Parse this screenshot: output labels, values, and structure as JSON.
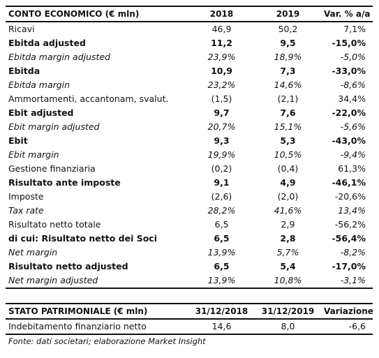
{
  "income": {
    "header": [
      "CONTO ECONOMICO (€ mln)",
      "2018",
      "2019",
      "Var. % a/a"
    ],
    "rows": [
      {
        "label": "Ricavi",
        "v2018": "46,9",
        "v2019": "50,2",
        "var": "7,1%",
        "style": "normal"
      },
      {
        "label": "Ebitda adjusted",
        "v2018": "11,2",
        "v2019": "9,5",
        "var": "-15,0%",
        "style": "bold"
      },
      {
        "label": "Ebitda margin adjusted",
        "v2018": "23,9%",
        "v2019": "18,9%",
        "var": "-5,0%",
        "style": "italic"
      },
      {
        "label": "Ebitda",
        "v2018": "10,9",
        "v2019": "7,3",
        "var": "-33,0%",
        "style": "bold"
      },
      {
        "label": "Ebitda margin",
        "v2018": "23,2%",
        "v2019": "14,6%",
        "var": "-8,6%",
        "style": "italic"
      },
      {
        "label": "Ammortamenti, accantonam, svalut.",
        "v2018": "(1,5)",
        "v2019": "(2,1)",
        "var": "34,4%",
        "style": "normal"
      },
      {
        "label": "Ebit adjusted",
        "v2018": "9,7",
        "v2019": "7,6",
        "var": "-22,0%",
        "style": "bold"
      },
      {
        "label": "Ebit margin adjusted",
        "v2018": "20,7%",
        "v2019": "15,1%",
        "var": "-5,6%",
        "style": "italic"
      },
      {
        "label": "Ebit",
        "v2018": "9,3",
        "v2019": "5,3",
        "var": "-43,0%",
        "style": "bold"
      },
      {
        "label": "Ebit margin",
        "v2018": "19,9%",
        "v2019": "10,5%",
        "var": "-9,4%",
        "style": "italic"
      },
      {
        "label": "Gestione finanziaria",
        "v2018": "(0,2)",
        "v2019": "(0,4)",
        "var": "61,3%",
        "style": "normal"
      },
      {
        "label": "Risultato ante imposte",
        "v2018": "9,1",
        "v2019": "4,9",
        "var": "-46,1%",
        "style": "bold"
      },
      {
        "label": "Imposte",
        "v2018": "(2,6)",
        "v2019": "(2,0)",
        "var": "-20,6%",
        "style": "normal"
      },
      {
        "label": "Tax rate",
        "v2018": "28,2%",
        "v2019": "41,6%",
        "var": "13,4%",
        "style": "italic"
      },
      {
        "label": "Risultato netto totale",
        "v2018": "6,5",
        "v2019": "2,9",
        "var": "-56,2%",
        "style": "normal"
      },
      {
        "label": "di cui: Risultato netto dei Soci",
        "v2018": "6,5",
        "v2019": "2,8",
        "var": "-56,4%",
        "style": "bold"
      },
      {
        "label": "Net margin",
        "v2018": "13,9%",
        "v2019": "5,7%",
        "var": "-8,2%",
        "style": "italic"
      },
      {
        "label": "Risultato netto adjusted",
        "v2018": "6,5",
        "v2019": "5,4",
        "var": "-17,0%",
        "style": "bold"
      },
      {
        "label": "Net margin adjusted",
        "v2018": "13,9%",
        "v2019": "10,8%",
        "var": "-3,1%",
        "style": "italic"
      }
    ]
  },
  "balance": {
    "header": [
      "STATO PATRIMONIALE (€ mln)",
      "31/12/2018",
      "31/12/2019",
      "Variazione"
    ],
    "rows": [
      {
        "label": "Indebitamento finanziario netto",
        "v2018": "14,6",
        "v2019": "8,0",
        "var": "-6,6",
        "style": "normal"
      }
    ]
  },
  "source": "Fonte: dati societari; elaborazione Market Insight"
}
